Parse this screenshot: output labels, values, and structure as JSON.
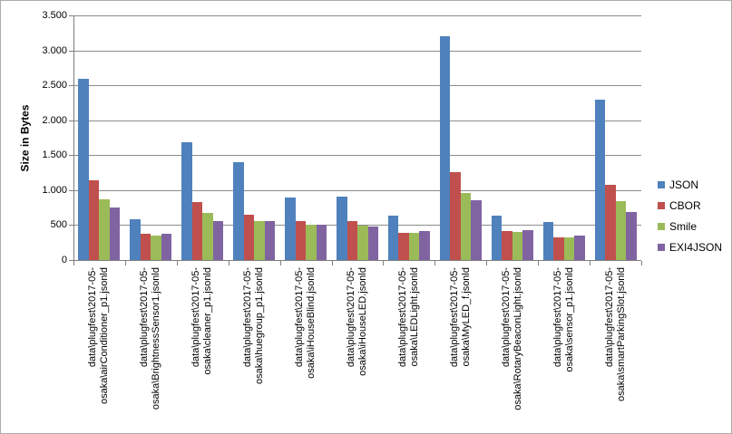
{
  "chart_data": {
    "type": "bar",
    "title": "",
    "xlabel": "",
    "ylabel": "Size in Bytes",
    "ylim": [
      0,
      3500
    ],
    "ytick_step": 500,
    "ytick_labels": [
      "0",
      "500",
      "1.000",
      "1.500",
      "2.000",
      "2.500",
      "3.000",
      "3.500"
    ],
    "grid": "horizontal-only",
    "legend_position": "right",
    "categories": [
      "data\\plugfest\\2017-05-osaka\\airConditioner_p1.jsonld",
      "data\\plugfest\\2017-05-osaka\\BrightnessSensor1.jsonld",
      "data\\plugfest\\2017-05-osaka\\cleaner_p1.jsonld",
      "data\\plugfest\\2017-05-osaka\\huegroup_p1.jsonld",
      "data\\plugfest\\2017-05-osaka\\iHouseBlind.jsonld",
      "data\\plugfest\\2017-05-osaka\\iHouseLED.jsonld",
      "data\\plugfest\\2017-05-osaka\\LEDLight.jsonld",
      "data\\plugfest\\2017-05-osaka\\MyLED_f.jsonld",
      "data\\plugfest\\2017-05-osaka\\RotaryBeaconLight.jsonld",
      "data\\plugfest\\2017-05-osaka\\sensor_p1.jsonld",
      "data\\plugfest\\2017-05-osaka\\smartParkingSlot.jsonld"
    ],
    "category_display_lines": [
      [
        "data\\plugfest\\2017-05-",
        "osaka\\airConditioner_p1.jsonld"
      ],
      [
        "data\\plugfest\\2017-05-",
        "osaka\\BrightnessSensor1.jsonld"
      ],
      [
        "data\\plugfest\\2017-05-",
        "osaka\\cleaner_p1.jsonld"
      ],
      [
        "data\\plugfest\\2017-05-",
        "osaka\\huegroup_p1.jsonld"
      ],
      [
        "data\\plugfest\\2017-05-",
        "osaka\\iHouseBlind.jsonld"
      ],
      [
        "data\\plugfest\\2017-05-",
        "osaka\\iHouseLED.jsonld"
      ],
      [
        "data\\plugfest\\2017-05-",
        "osaka\\LEDLight.jsonld"
      ],
      [
        "data\\plugfest\\2017-05-",
        "osaka\\MyLED_f.jsonld"
      ],
      [
        "data\\plugfest\\2017-05-",
        "osaka\\RotaryBeaconLight.jsonld"
      ],
      [
        "data\\plugfest\\2017-05-",
        "osaka\\sensor_p1.jsonld"
      ],
      [
        "data\\plugfest\\2017-05-",
        "osaka\\smartParkingSlot.jsonld"
      ]
    ],
    "series": [
      {
        "name": "JSON",
        "color": "#4F81BD",
        "values": [
          2590,
          580,
          1680,
          1400,
          900,
          910,
          630,
          3200,
          640,
          545,
          2300
        ]
      },
      {
        "name": "CBOR",
        "color": "#C0504D",
        "values": [
          1140,
          370,
          830,
          650,
          555,
          560,
          390,
          1260,
          415,
          325,
          1080
        ]
      },
      {
        "name": "Smile",
        "color": "#9BBB59",
        "values": [
          870,
          350,
          670,
          555,
          500,
          495,
          385,
          965,
          400,
          320,
          840
        ]
      },
      {
        "name": "EXI4JSON",
        "color": "#8064A2",
        "values": [
          750,
          380,
          555,
          560,
          500,
          480,
          410,
          850,
          430,
          345,
          690
        ]
      }
    ]
  },
  "colors": {
    "gridline": "#8C8C8C",
    "axis": "#7F7F7F",
    "text": "#000000",
    "chart_border": "#ABABAB",
    "background": "#FFFFFF"
  }
}
